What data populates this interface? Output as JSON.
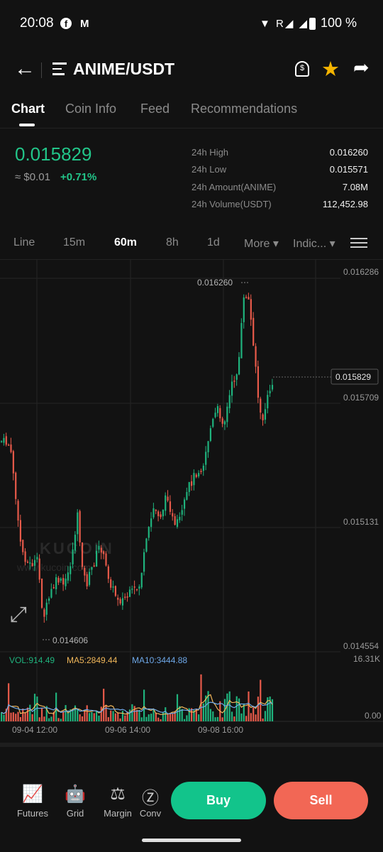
{
  "status_bar": {
    "time": "20:08",
    "battery": "100 %",
    "facebook_glyph": "f",
    "gmail_glyph": "M",
    "signal_glyphs": "▼ R◢ ◢"
  },
  "header": {
    "back_glyph": "←",
    "pair": "ANIME/USDT",
    "alert_glyph": "$",
    "star_glyph": "★",
    "share_glyph": "➦"
  },
  "tabs": [
    "Chart",
    "Coin Info",
    "Feed",
    "Recommendations"
  ],
  "price": {
    "last": "0.015829",
    "usd": "≈ $0.01",
    "change": "+0.71%"
  },
  "stats": [
    {
      "label": "24h High",
      "value": "0.016260"
    },
    {
      "label": "24h Low",
      "value": "0.015571"
    },
    {
      "label": "24h Amount(ANIME)",
      "value": "7.08M"
    },
    {
      "label": "24h Volume(USDT)",
      "value": "112,452.98"
    }
  ],
  "intervals": [
    "Line",
    "15m",
    "60m",
    "8h",
    "1d",
    "More ▾",
    "Indic... ▾"
  ],
  "chart": {
    "price_axis": [
      "0.016286",
      "0.015709",
      "0.015131",
      "0.014554"
    ],
    "current_price": "0.015829",
    "high_marker": "0.016260",
    "low_marker": "0.014606",
    "watermark": "KUCOIN",
    "watermark_url": "www.kucoin.com",
    "volume_axis": [
      "16.31K",
      "0.00"
    ],
    "vol_label": "VOL:914.49",
    "ma5_label": "MA5:2849.44",
    "ma10_label": "MA10:3444.88",
    "time_axis": [
      "09-04 12:00",
      "09-06 14:00",
      "09-08 16:00"
    ],
    "fullscreen_glyph": "⤢",
    "colors": {
      "up": "#1fb37d",
      "down": "#e85a4a",
      "ma5": "#f0b75a",
      "ma10": "#6ea8e8"
    }
  },
  "bottom_nav": [
    {
      "label": "Futures",
      "icon": "futures-icon",
      "glyph": "📈"
    },
    {
      "label": "Grid",
      "icon": "grid-bot-icon",
      "glyph": "🤖"
    },
    {
      "label": "Margin",
      "icon": "margin-icon",
      "glyph": "⚖"
    },
    {
      "label": "Conv",
      "icon": "convert-icon",
      "glyph": "Ⓩ"
    }
  ],
  "actions": {
    "buy": "Buy",
    "sell": "Sell"
  }
}
